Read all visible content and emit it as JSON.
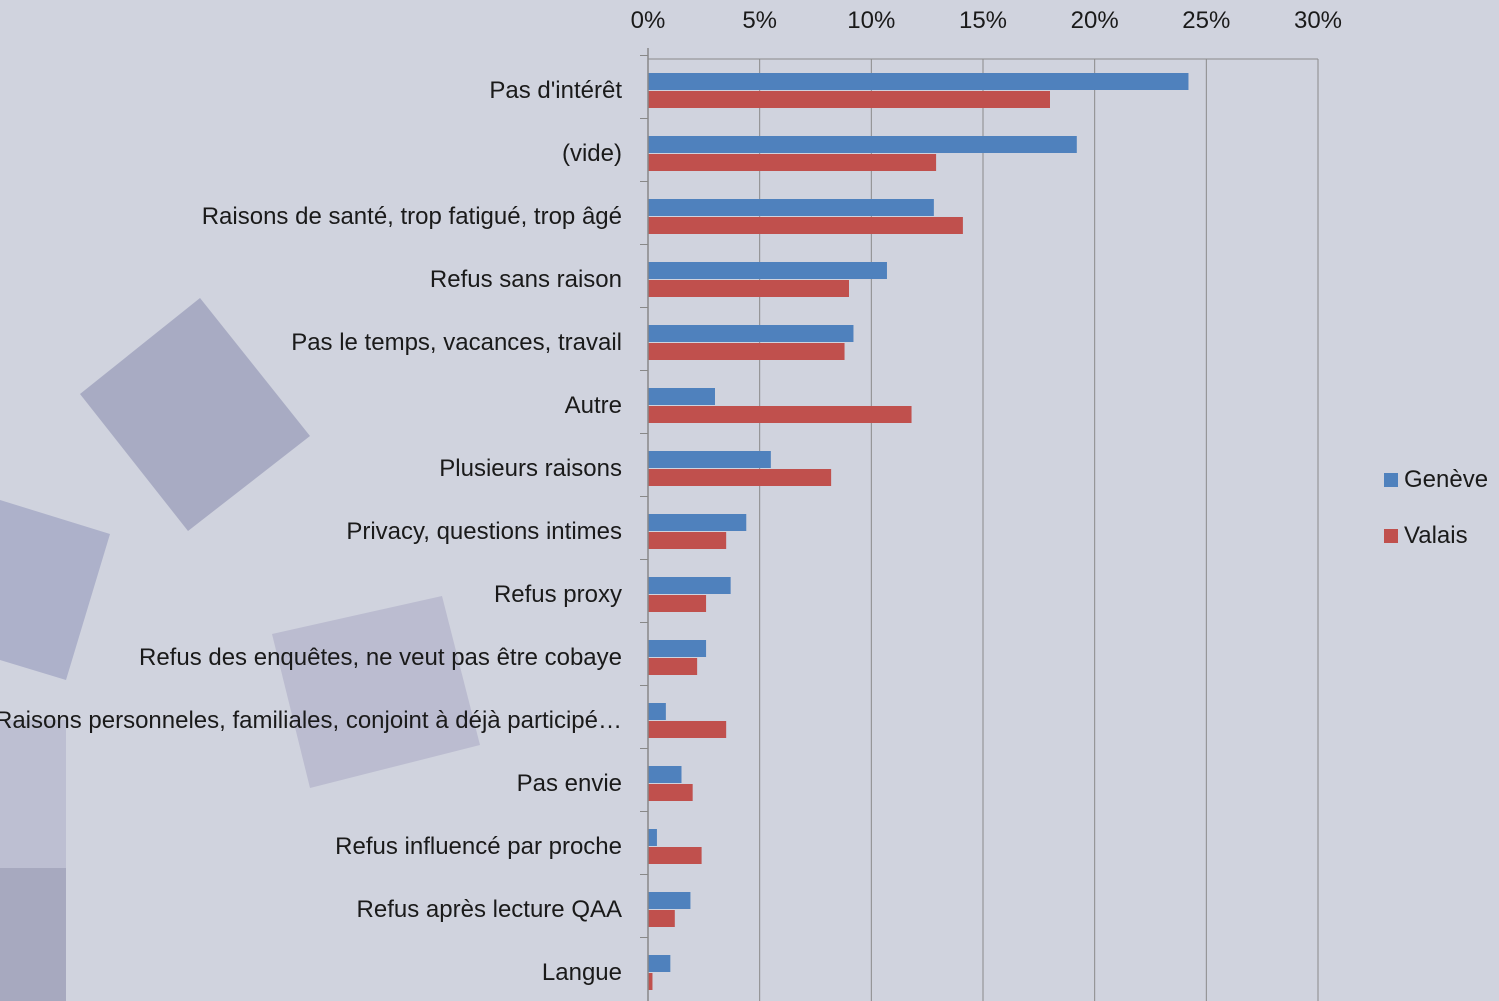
{
  "chart_data": {
    "type": "bar",
    "orientation": "horizontal",
    "categories": [
      "Pas d'intérêt",
      "(vide)",
      "Raisons de santé, trop fatigué, trop âgé",
      "Refus sans raison",
      "Pas le temps, vacances, travail",
      "Autre",
      "Plusieurs raisons",
      "Privacy, questions intimes",
      "Refus proxy",
      "Refus des enquêtes, ne veut pas être cobaye",
      "Raisons personneles, familiales, conjoint à déjà participé…",
      "Pas envie",
      "Refus influencé par proche",
      "Refus après lecture QAA",
      "Langue"
    ],
    "series": [
      {
        "name": "Genève",
        "color": "#4f81bd",
        "values": [
          24.2,
          19.2,
          12.8,
          10.7,
          9.2,
          3.0,
          5.5,
          4.4,
          3.7,
          2.6,
          0.8,
          1.5,
          0.4,
          1.9,
          1.0
        ]
      },
      {
        "name": "Valais",
        "color": "#c0504d",
        "values": [
          18.0,
          12.9,
          14.1,
          9.0,
          8.8,
          11.8,
          8.2,
          3.5,
          2.6,
          2.2,
          3.5,
          2.0,
          2.4,
          1.2,
          0.2
        ]
      }
    ],
    "xticks": [
      "0%",
      "5%",
      "10%",
      "15%",
      "20%",
      "25%",
      "30%"
    ],
    "xlim": [
      0,
      30
    ],
    "title": "",
    "xlabel": "",
    "ylabel": "",
    "grid": true,
    "legend_position": "right"
  }
}
